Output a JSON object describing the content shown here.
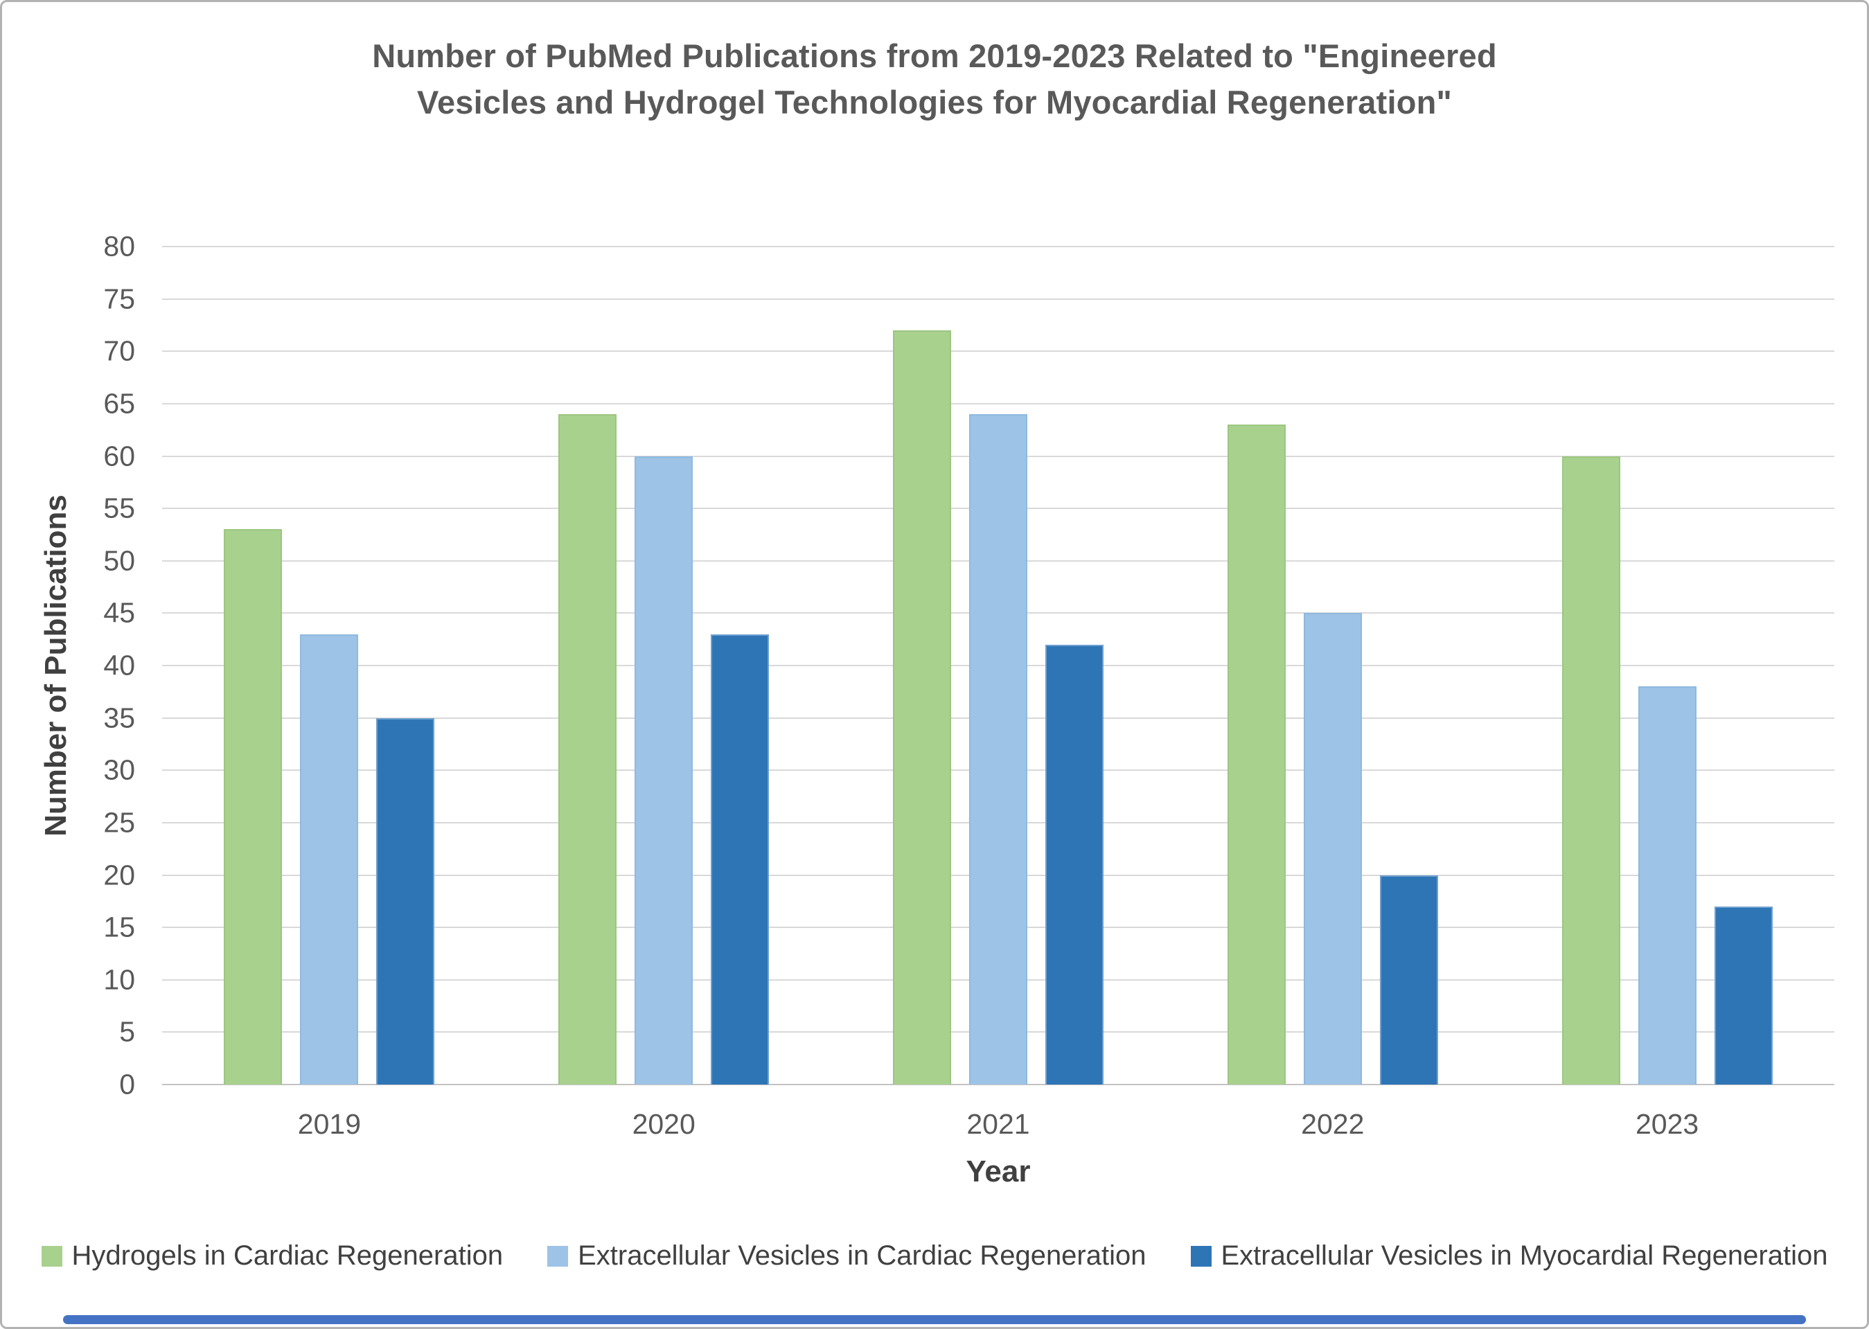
{
  "chart_data": {
    "type": "bar",
    "title": "Number of PubMed Publications from 2019-2023 Related to \"Engineered Vesicles and Hydrogel Technologies for Myocardial Regeneration\"",
    "title_lines": [
      "Number of PubMed Publications from 2019-2023 Related to \"Engineered",
      "Vesicles and Hydrogel Technologies for Myocardial Regeneration\""
    ],
    "xlabel": "Year",
    "ylabel": "Number of Publications",
    "ylim": [
      0,
      80
    ],
    "ytick_step": 5,
    "yticks": [
      0,
      5,
      10,
      15,
      20,
      25,
      30,
      35,
      40,
      45,
      50,
      55,
      60,
      65,
      70,
      75,
      80
    ],
    "grid": "horizontal",
    "legend_position": "bottom",
    "categories": [
      "2019",
      "2020",
      "2021",
      "2022",
      "2023"
    ],
    "series": [
      {
        "name": "Hydrogels in Cardiac Regeneration",
        "color": "#A9D18E",
        "edge": "#9CC681",
        "values": [
          53,
          64,
          72,
          63,
          60
        ]
      },
      {
        "name": "Extracellular Vesicles in Cardiac Regeneration",
        "color": "#9DC3E6",
        "edge": "#8FB9DF",
        "values": [
          43,
          60,
          64,
          45,
          38
        ]
      },
      {
        "name": "Extracellular Vesicles in Myocardial Regeneration",
        "color": "#2E75B6",
        "edge": "#6FA0CF",
        "values": [
          35,
          43,
          42,
          20,
          17
        ]
      }
    ],
    "colors": {
      "gridline": "#d9d9d9",
      "axis_line": "#c3c3c3",
      "title_text": "#595959",
      "tick_text": "#595959",
      "axis_title_text": "#404040",
      "bottom_accent": "#4472C4"
    }
  }
}
